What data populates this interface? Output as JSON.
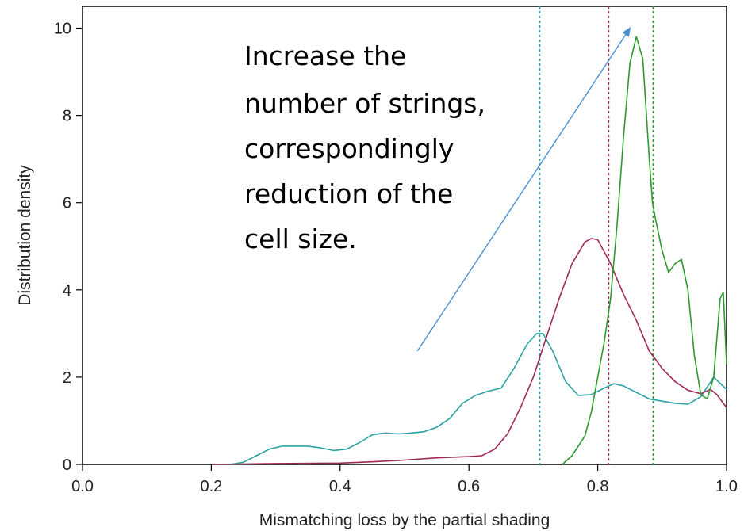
{
  "chart_data": {
    "type": "line",
    "title": "",
    "xlabel": "Mismatching loss by the partial shading",
    "ylabel": "Distribution density",
    "xlim": [
      0.0,
      1.0
    ],
    "ylim": [
      0,
      10.5
    ],
    "x_ticks": [
      0.0,
      0.2,
      0.4,
      0.6,
      0.8,
      1.0
    ],
    "x_tick_labels": [
      "0.0",
      "0.2",
      "0.4",
      "0.6",
      "0.8",
      "1.0"
    ],
    "y_ticks": [
      0,
      2,
      4,
      6,
      8,
      10
    ],
    "y_tick_labels": [
      "0",
      "2",
      "4",
      "6",
      "8",
      "10"
    ],
    "grid": false,
    "series": [
      {
        "color": "#2aa3a3",
        "points": [
          [
            0.23,
            0.0
          ],
          [
            0.25,
            0.05
          ],
          [
            0.27,
            0.2
          ],
          [
            0.29,
            0.35
          ],
          [
            0.31,
            0.42
          ],
          [
            0.33,
            0.42
          ],
          [
            0.35,
            0.42
          ],
          [
            0.37,
            0.38
          ],
          [
            0.39,
            0.32
          ],
          [
            0.41,
            0.35
          ],
          [
            0.43,
            0.5
          ],
          [
            0.45,
            0.68
          ],
          [
            0.47,
            0.72
          ],
          [
            0.49,
            0.7
          ],
          [
            0.51,
            0.72
          ],
          [
            0.53,
            0.75
          ],
          [
            0.55,
            0.85
          ],
          [
            0.57,
            1.05
          ],
          [
            0.59,
            1.4
          ],
          [
            0.61,
            1.58
          ],
          [
            0.63,
            1.68
          ],
          [
            0.65,
            1.75
          ],
          [
            0.67,
            2.2
          ],
          [
            0.69,
            2.75
          ],
          [
            0.705,
            3.0
          ],
          [
            0.715,
            3.0
          ],
          [
            0.73,
            2.6
          ],
          [
            0.75,
            1.9
          ],
          [
            0.77,
            1.58
          ],
          [
            0.79,
            1.6
          ],
          [
            0.81,
            1.75
          ],
          [
            0.825,
            1.85
          ],
          [
            0.84,
            1.8
          ],
          [
            0.86,
            1.65
          ],
          [
            0.88,
            1.5
          ],
          [
            0.9,
            1.45
          ],
          [
            0.92,
            1.4
          ],
          [
            0.94,
            1.38
          ],
          [
            0.96,
            1.55
          ],
          [
            0.98,
            2.0
          ],
          [
            1.0,
            1.72
          ]
        ]
      },
      {
        "color": "#a0285a",
        "points": [
          [
            0.2,
            0.0
          ],
          [
            0.3,
            0.02
          ],
          [
            0.4,
            0.03
          ],
          [
            0.45,
            0.06
          ],
          [
            0.5,
            0.1
          ],
          [
            0.55,
            0.15
          ],
          [
            0.6,
            0.18
          ],
          [
            0.62,
            0.2
          ],
          [
            0.64,
            0.35
          ],
          [
            0.66,
            0.7
          ],
          [
            0.68,
            1.3
          ],
          [
            0.7,
            2.0
          ],
          [
            0.72,
            2.9
          ],
          [
            0.74,
            3.8
          ],
          [
            0.76,
            4.6
          ],
          [
            0.78,
            5.1
          ],
          [
            0.79,
            5.18
          ],
          [
            0.8,
            5.15
          ],
          [
            0.82,
            4.6
          ],
          [
            0.84,
            3.9
          ],
          [
            0.86,
            3.3
          ],
          [
            0.88,
            2.6
          ],
          [
            0.9,
            2.2
          ],
          [
            0.92,
            1.9
          ],
          [
            0.94,
            1.7
          ],
          [
            0.96,
            1.62
          ],
          [
            0.975,
            1.72
          ],
          [
            0.985,
            1.6
          ],
          [
            1.0,
            1.3
          ]
        ]
      },
      {
        "color": "#2e9a2e",
        "points": [
          [
            0.745,
            0.0
          ],
          [
            0.76,
            0.2
          ],
          [
            0.78,
            0.65
          ],
          [
            0.79,
            1.2
          ],
          [
            0.8,
            2.0
          ],
          [
            0.81,
            2.8
          ],
          [
            0.82,
            3.8
          ],
          [
            0.83,
            5.5
          ],
          [
            0.84,
            7.5
          ],
          [
            0.85,
            9.2
          ],
          [
            0.86,
            9.8
          ],
          [
            0.87,
            9.3
          ],
          [
            0.88,
            7.0
          ],
          [
            0.885,
            6.0
          ],
          [
            0.89,
            5.6
          ],
          [
            0.9,
            4.9
          ],
          [
            0.91,
            4.4
          ],
          [
            0.92,
            4.6
          ],
          [
            0.93,
            4.7
          ],
          [
            0.94,
            4.0
          ],
          [
            0.95,
            2.5
          ],
          [
            0.96,
            1.6
          ],
          [
            0.97,
            1.5
          ],
          [
            0.98,
            2.0
          ],
          [
            0.99,
            3.8
          ],
          [
            0.995,
            3.95
          ],
          [
            1.0,
            2.3
          ]
        ]
      }
    ],
    "vlines": [
      {
        "x": 0.71,
        "color": "#2aa3a3"
      },
      {
        "x": 0.817,
        "color": "#a0285a"
      },
      {
        "x": 0.886,
        "color": "#2e9a2e"
      }
    ],
    "annotation": {
      "lines": [
        "Increase the",
        "number of strings,",
        "correspondingly",
        "reduction of the",
        "cell size."
      ],
      "arrow_from": [
        0.52,
        2.6
      ],
      "arrow_to": [
        0.85,
        10.0
      ],
      "arrow_color": "#4a90d0"
    }
  }
}
